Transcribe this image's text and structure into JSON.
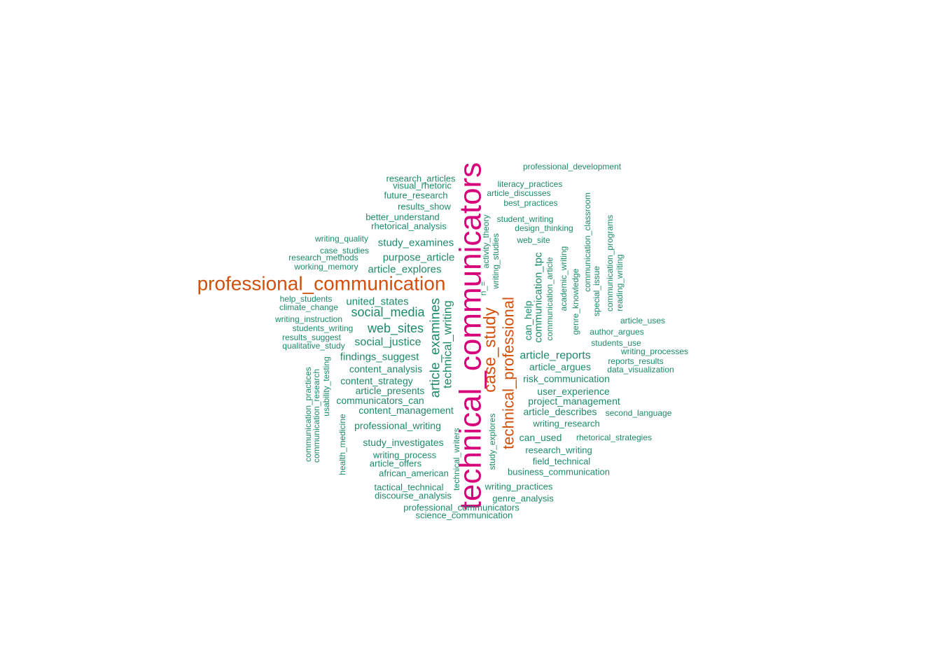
{
  "colors": {
    "background": "#ffffff",
    "top": "#d6007a",
    "second": "#d1500c",
    "rest": "#1d8a6a"
  },
  "words": [
    {
      "text": "technical_communicators",
      "color": "top"
    },
    {
      "text": "professional_communication",
      "color": "second"
    },
    {
      "text": "case_study",
      "color": "second"
    },
    {
      "text": "technical_professional",
      "color": "second"
    },
    {
      "text": "article_examines",
      "color": "rest"
    },
    {
      "text": "technical_writing",
      "color": "rest"
    },
    {
      "text": "social_media",
      "color": "rest"
    },
    {
      "text": "web_sites",
      "color": "rest"
    },
    {
      "text": "social_justice",
      "color": "rest"
    },
    {
      "text": "united_states",
      "color": "rest"
    },
    {
      "text": "article_reports",
      "color": "rest"
    },
    {
      "text": "communication_tpc",
      "color": "rest"
    },
    {
      "text": "can_help",
      "color": "rest"
    },
    {
      "text": "study_examines",
      "color": "rest"
    },
    {
      "text": "purpose_article",
      "color": "rest"
    },
    {
      "text": "article_explores",
      "color": "rest"
    },
    {
      "text": "findings_suggest",
      "color": "rest"
    },
    {
      "text": "content_analysis",
      "color": "rest"
    },
    {
      "text": "content_strategy",
      "color": "rest"
    },
    {
      "text": "article_presents",
      "color": "rest"
    },
    {
      "text": "communicators_can",
      "color": "rest"
    },
    {
      "text": "content_management",
      "color": "rest"
    },
    {
      "text": "professional_writing",
      "color": "rest"
    },
    {
      "text": "study_investigates",
      "color": "rest"
    },
    {
      "text": "risk_communication",
      "color": "rest"
    },
    {
      "text": "article_argues",
      "color": "rest"
    },
    {
      "text": "user_experience",
      "color": "rest"
    },
    {
      "text": "project_management",
      "color": "rest"
    },
    {
      "text": "article_describes",
      "color": "rest"
    },
    {
      "text": "writing_research",
      "color": "rest"
    },
    {
      "text": "can_used",
      "color": "rest"
    },
    {
      "text": "research_writing",
      "color": "rest"
    },
    {
      "text": "field_technical",
      "color": "rest"
    },
    {
      "text": "business_communication",
      "color": "rest"
    },
    {
      "text": "writing_practices",
      "color": "rest"
    },
    {
      "text": "genre_analysis",
      "color": "rest"
    },
    {
      "text": "writing_process",
      "color": "rest"
    },
    {
      "text": "article_offers",
      "color": "rest"
    },
    {
      "text": "african_american",
      "color": "rest"
    },
    {
      "text": "tactical_technical",
      "color": "rest"
    },
    {
      "text": "discourse_analysis",
      "color": "rest"
    },
    {
      "text": "professional_communicators",
      "color": "rest"
    },
    {
      "text": "science_communication",
      "color": "rest"
    },
    {
      "text": "research_articles",
      "color": "rest"
    },
    {
      "text": "visual_rhetoric",
      "color": "rest"
    },
    {
      "text": "future_research",
      "color": "rest"
    },
    {
      "text": "results_show",
      "color": "rest"
    },
    {
      "text": "better_understand",
      "color": "rest"
    },
    {
      "text": "rhetorical_analysis",
      "color": "rest"
    },
    {
      "text": "writing_quality",
      "color": "rest"
    },
    {
      "text": "case_studies",
      "color": "rest"
    },
    {
      "text": "research_methods",
      "color": "rest"
    },
    {
      "text": "working_memory",
      "color": "rest"
    },
    {
      "text": "help_students",
      "color": "rest"
    },
    {
      "text": "climate_change",
      "color": "rest"
    },
    {
      "text": "writing_instruction",
      "color": "rest"
    },
    {
      "text": "students_writing",
      "color": "rest"
    },
    {
      "text": "results_suggest",
      "color": "rest"
    },
    {
      "text": "qualitative_study",
      "color": "rest"
    },
    {
      "text": "professional_development",
      "color": "rest"
    },
    {
      "text": "literacy_practices",
      "color": "rest"
    },
    {
      "text": "article_discusses",
      "color": "rest"
    },
    {
      "text": "best_practices",
      "color": "rest"
    },
    {
      "text": "student_writing",
      "color": "rest"
    },
    {
      "text": "design_thinking",
      "color": "rest"
    },
    {
      "text": "web_site",
      "color": "rest"
    },
    {
      "text": "author_argues",
      "color": "rest"
    },
    {
      "text": "article_uses",
      "color": "rest"
    },
    {
      "text": "students_use",
      "color": "rest"
    },
    {
      "text": "writing_processes",
      "color": "rest"
    },
    {
      "text": "reports_results",
      "color": "rest"
    },
    {
      "text": "data_visualization",
      "color": "rest"
    },
    {
      "text": "second_language",
      "color": "rest"
    },
    {
      "text": "rhetorical_strategies",
      "color": "rest"
    },
    {
      "text": "n_=",
      "color": "rest"
    },
    {
      "text": "activity_theory",
      "color": "rest"
    },
    {
      "text": "writing_studies",
      "color": "rest"
    },
    {
      "text": "communication_article",
      "color": "rest"
    },
    {
      "text": "academic_writing",
      "color": "rest"
    },
    {
      "text": "genre_knowledge",
      "color": "rest"
    },
    {
      "text": "communication_classroom",
      "color": "rest"
    },
    {
      "text": "special_issue",
      "color": "rest"
    },
    {
      "text": "communication_programs",
      "color": "rest"
    },
    {
      "text": "reading_writing",
      "color": "rest"
    },
    {
      "text": "communication_practices",
      "color": "rest"
    },
    {
      "text": "communication_research",
      "color": "rest"
    },
    {
      "text": "usability_testing",
      "color": "rest"
    },
    {
      "text": "health_medicine",
      "color": "rest"
    },
    {
      "text": "technical_writers",
      "color": "rest"
    },
    {
      "text": "study_explores",
      "color": "rest"
    }
  ]
}
